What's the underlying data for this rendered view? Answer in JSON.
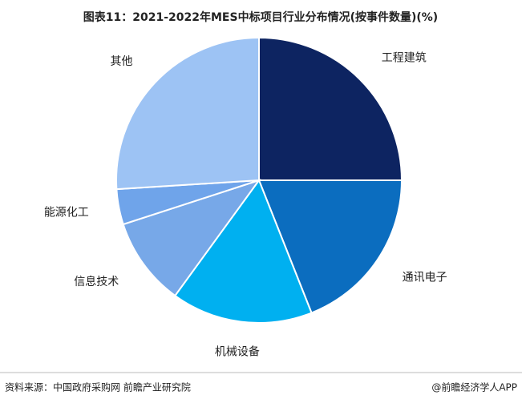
{
  "chart_data": {
    "type": "pie",
    "title": "图表11：2021-2022年MES中标项目行业分布情况(按事件数量)(%)",
    "categories": [
      "工程建筑",
      "通讯电子",
      "机械设备",
      "信息技术",
      "能源化工",
      "其他"
    ],
    "values": [
      25,
      19,
      16,
      10,
      4,
      26
    ],
    "colors": [
      "#0d2461",
      "#0b6dbf",
      "#00b0f0",
      "#77a8e8",
      "#6fa4ea",
      "#9dc3f4"
    ]
  },
  "footer": {
    "source": "资料来源：中国政府采购网 前瞻产业研究院",
    "brand": "@前瞻经济学人APP"
  }
}
